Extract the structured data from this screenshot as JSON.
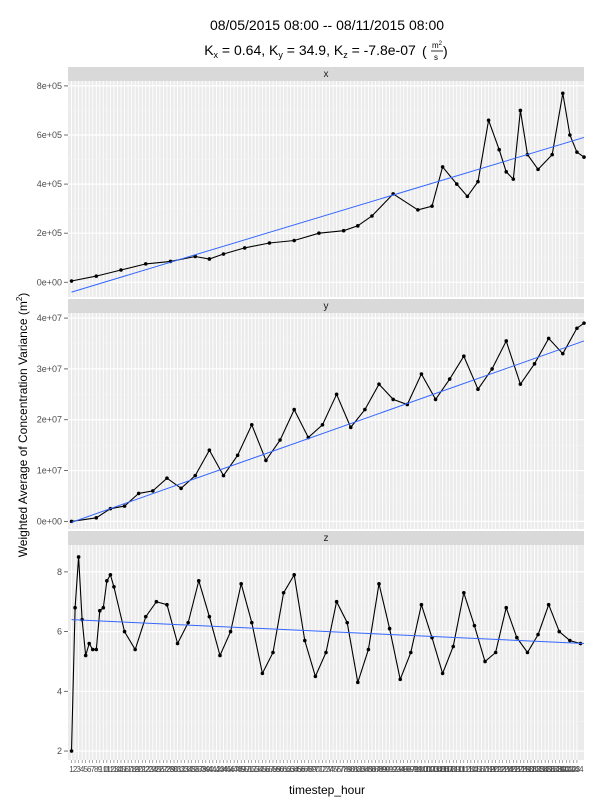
{
  "header": {
    "title_line1": "08/05/2015 08:00 -- 08/11/2015 08:00",
    "params": {
      "kx_label": "K",
      "kx_sub": "x",
      "kx_value": " = 0.64, ",
      "ky_label": "K",
      "ky_sub": "y",
      "ky_value": " = 34.9, ",
      "kz_label": "K",
      "kz_sub": "z",
      "kz_value": " = -7.8e-07",
      "unit_num": "m",
      "unit_num_sup": "2",
      "unit_den": "s"
    }
  },
  "axes": {
    "ylabel_text": "Weighted Average of Concentration Variance (m",
    "ylabel_sup": "2",
    "ylabel_close": ")",
    "xlabel": "timestep_hour"
  },
  "colors": {
    "panel_bg": "#ebebeb",
    "grid": "#ffffff",
    "strip_bg": "#d9d9d9",
    "points": "#000000",
    "trend": "#3366ff"
  },
  "chart_data": [
    {
      "type": "line",
      "facet": "x",
      "title": "x",
      "xlabel": "timestep_hour",
      "ylabel": "Weighted Average of Concentration Variance (m2)",
      "xlim": [
        0,
        146
      ],
      "ylim": [
        -60000,
        820000
      ],
      "y_ticks": [
        0,
        200000,
        400000,
        600000,
        800000
      ],
      "y_tick_labels": [
        "0e+00",
        "2e+05",
        "4e+05",
        "6e+05",
        "8e+05"
      ],
      "grid": true,
      "series": [
        {
          "kind": "points-line",
          "x": [
            1,
            8,
            15,
            22,
            29,
            36,
            40,
            44,
            50,
            57,
            64,
            71,
            78,
            82,
            86,
            92,
            99,
            103,
            106,
            110,
            113,
            116,
            119,
            122,
            124,
            126,
            128,
            130,
            133,
            137,
            140,
            142,
            144,
            146
          ],
          "y": [
            5000,
            25000,
            50000,
            75000,
            85000,
            105000,
            95000,
            115000,
            140000,
            160000,
            170000,
            200000,
            210000,
            230000,
            270000,
            360000,
            295000,
            310000,
            470000,
            400000,
            350000,
            410000,
            660000,
            540000,
            450000,
            420000,
            700000,
            520000,
            460000,
            520000,
            770000,
            600000,
            530000,
            510000
          ]
        },
        {
          "kind": "trend",
          "x": [
            1,
            146
          ],
          "y": [
            -40000,
            590000
          ]
        }
      ]
    },
    {
      "type": "line",
      "facet": "y",
      "title": "y",
      "xlabel": "timestep_hour",
      "ylabel": "Weighted Average of Concentration Variance (m2)",
      "xlim": [
        0,
        146
      ],
      "ylim": [
        -1500000,
        41000000
      ],
      "y_ticks": [
        0,
        10000000,
        20000000,
        30000000,
        40000000
      ],
      "y_tick_labels": [
        "0e+00",
        "1e+07",
        "2e+07",
        "3e+07",
        "4e+07"
      ],
      "grid": true,
      "series": [
        {
          "kind": "points-line",
          "x": [
            1,
            8,
            12,
            16,
            20,
            24,
            28,
            32,
            36,
            40,
            44,
            48,
            52,
            56,
            60,
            64,
            68,
            72,
            76,
            80,
            84,
            88,
            92,
            96,
            100,
            104,
            108,
            112,
            116,
            120,
            124,
            128,
            132,
            136,
            140,
            144,
            146
          ],
          "y": [
            0,
            700000,
            2500000,
            3000000,
            5500000,
            6000000,
            8500000,
            6500000,
            9000000,
            14000000,
            9000000,
            13000000,
            19000000,
            12000000,
            16000000,
            22000000,
            16500000,
            19000000,
            25000000,
            18500000,
            22000000,
            27000000,
            24000000,
            23000000,
            29000000,
            24000000,
            28000000,
            32500000,
            26000000,
            30000000,
            35500000,
            27000000,
            31000000,
            36000000,
            33000000,
            38000000,
            39000000
          ]
        },
        {
          "kind": "trend",
          "x": [
            1,
            146
          ],
          "y": [
            -200000,
            35500000
          ]
        }
      ]
    },
    {
      "type": "line",
      "facet": "z",
      "title": "z",
      "xlabel": "timestep_hour",
      "ylabel": "Weighted Average of Concentration Variance (m2)",
      "xlim": [
        0,
        146
      ],
      "ylim": [
        1.7,
        8.9
      ],
      "y_ticks": [
        2,
        4,
        6,
        8
      ],
      "y_tick_labels": [
        "2",
        "4",
        "6",
        "8"
      ],
      "grid": true,
      "series": [
        {
          "kind": "points-line",
          "x": [
            1,
            2,
            3,
            4,
            5,
            6,
            7,
            8,
            9,
            10,
            11,
            12,
            13,
            16,
            19,
            22,
            25,
            28,
            31,
            34,
            37,
            40,
            43,
            46,
            49,
            52,
            55,
            58,
            61,
            64,
            67,
            70,
            73,
            76,
            79,
            82,
            85,
            88,
            91,
            94,
            97,
            100,
            103,
            106,
            109,
            112,
            115,
            118,
            121,
            124,
            127,
            130,
            133,
            136,
            139,
            142,
            145
          ],
          "y": [
            2.0,
            6.8,
            8.5,
            6.4,
            5.2,
            5.6,
            5.4,
            5.4,
            6.7,
            6.8,
            7.7,
            7.9,
            7.5,
            6.0,
            5.4,
            6.5,
            7.0,
            6.9,
            5.6,
            6.3,
            7.7,
            6.5,
            5.2,
            6.0,
            7.6,
            6.3,
            4.6,
            5.3,
            7.3,
            7.9,
            5.7,
            4.5,
            5.3,
            7.0,
            6.3,
            4.3,
            5.4,
            7.6,
            6.1,
            4.4,
            5.3,
            6.9,
            5.8,
            4.6,
            5.5,
            7.3,
            6.2,
            5.0,
            5.3,
            6.8,
            5.8,
            5.3,
            5.9,
            6.9,
            6.0,
            5.7,
            5.6
          ]
        },
        {
          "kind": "trend",
          "x": [
            1,
            146
          ],
          "y": [
            6.4,
            5.6
          ]
        }
      ]
    }
  ],
  "x_tick_labels": [
    "1",
    "2",
    "3",
    "4",
    "5",
    "6",
    "7",
    "8",
    "9",
    "10",
    "11",
    "12",
    "13",
    "14",
    "15",
    "16",
    "17",
    "18",
    "19",
    "20",
    "21",
    "22",
    "23",
    "24",
    "25",
    "26",
    "27",
    "28",
    "29",
    "30",
    "31",
    "32",
    "33",
    "34",
    "35",
    "36",
    "37",
    "38",
    "39",
    "40",
    "41",
    "42",
    "43",
    "44",
    "45",
    "46",
    "47",
    "48",
    "49",
    "50",
    "51",
    "52",
    "53",
    "54",
    "55",
    "56",
    "57",
    "58",
    "59",
    "60",
    "61",
    "62",
    "63",
    "64",
    "65",
    "66",
    "67",
    "68",
    "69",
    "70",
    "71",
    "72",
    "73",
    "74",
    "75",
    "76",
    "77",
    "78",
    "79",
    "80",
    "81",
    "82",
    "83",
    "84",
    "85",
    "86",
    "87",
    "88",
    "89",
    "90",
    "91",
    "92",
    "93",
    "94",
    "95",
    "96",
    "97",
    "98",
    "99",
    "100",
    "101",
    "102",
    "103",
    "104",
    "105",
    "106",
    "107",
    "108",
    "109",
    "110",
    "111",
    "112",
    "113",
    "114",
    "115",
    "116",
    "117",
    "118",
    "119",
    "120",
    "121",
    "122",
    "123",
    "124",
    "125",
    "126",
    "127",
    "128",
    "129",
    "130",
    "131",
    "132",
    "133",
    "134",
    "135",
    "136",
    "137",
    "138",
    "139",
    "140",
    "141",
    "142",
    "143",
    "144"
  ]
}
